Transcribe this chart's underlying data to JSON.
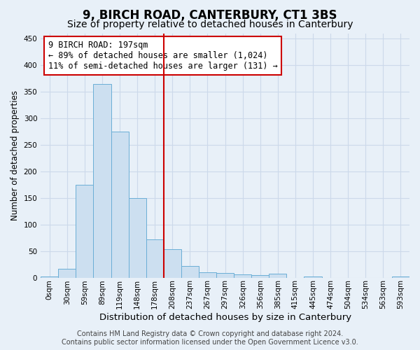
{
  "title": "9, BIRCH ROAD, CANTERBURY, CT1 3BS",
  "subtitle": "Size of property relative to detached houses in Canterbury",
  "xlabel": "Distribution of detached houses by size in Canterbury",
  "ylabel": "Number of detached properties",
  "bar_values": [
    2,
    17,
    175,
    365,
    275,
    150,
    72,
    53,
    22,
    10,
    8,
    6,
    5,
    7,
    0,
    2,
    0,
    0,
    0,
    0,
    2
  ],
  "bin_labels": [
    "0sqm",
    "30sqm",
    "59sqm",
    "89sqm",
    "119sqm",
    "148sqm",
    "178sqm",
    "208sqm",
    "237sqm",
    "267sqm",
    "297sqm",
    "326sqm",
    "356sqm",
    "385sqm",
    "415sqm",
    "445sqm",
    "474sqm",
    "504sqm",
    "534sqm",
    "563sqm",
    "593sqm"
  ],
  "bar_color": "#ccdff0",
  "bar_edge_color": "#6aaed6",
  "grid_color": "#ccd9ea",
  "background_color": "#e8f0f8",
  "vline_x": 6.5,
  "vline_color": "#cc0000",
  "annotation_line1": "9 BIRCH ROAD: 197sqm",
  "annotation_line2": "← 89% of detached houses are smaller (1,024)",
  "annotation_line3": "11% of semi-detached houses are larger (131) →",
  "annotation_box_color": "#ffffff",
  "annotation_border_color": "#cc0000",
  "ylim": [
    0,
    460
  ],
  "yticks": [
    0,
    50,
    100,
    150,
    200,
    250,
    300,
    350,
    400,
    450
  ],
  "footer_line1": "Contains HM Land Registry data © Crown copyright and database right 2024.",
  "footer_line2": "Contains public sector information licensed under the Open Government Licence v3.0.",
  "title_fontsize": 12,
  "subtitle_fontsize": 10,
  "xlabel_fontsize": 9.5,
  "ylabel_fontsize": 8.5,
  "tick_fontsize": 7.5,
  "annotation_fontsize": 8.5,
  "footer_fontsize": 7
}
